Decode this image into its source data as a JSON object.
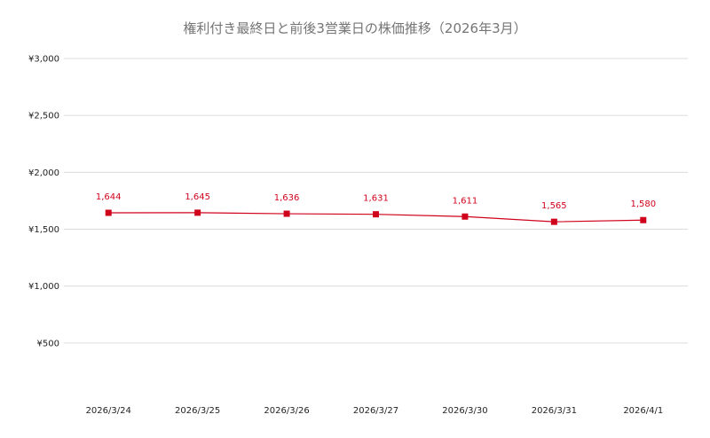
{
  "chart_data": {
    "type": "line",
    "title": "権利付き最終日と前後3営業日の株価推移（2026年3月）",
    "xlabel": "",
    "ylabel": "",
    "categories": [
      "2026/3/24",
      "2026/3/25",
      "2026/3/26",
      "2026/3/27",
      "2026/3/30",
      "2026/3/31",
      "2026/4/1"
    ],
    "series": [
      {
        "values": [
          1644,
          1645,
          1636,
          1631,
          1611,
          1565,
          1580
        ],
        "data_labels": [
          "1,644",
          "1,645",
          "1,636",
          "1,631",
          "1,611",
          "1,565",
          "1,580"
        ],
        "color": "#d0021b",
        "marker": "square"
      }
    ],
    "ylim": [
      0,
      3000
    ],
    "yticks": [
      500,
      1000,
      1500,
      2000,
      2500,
      3000
    ],
    "ytick_labels": [
      "¥500",
      "¥1,000",
      "¥1,500",
      "¥2,000",
      "¥2,500",
      "¥3,000"
    ],
    "grid": true,
    "legend": "none"
  }
}
